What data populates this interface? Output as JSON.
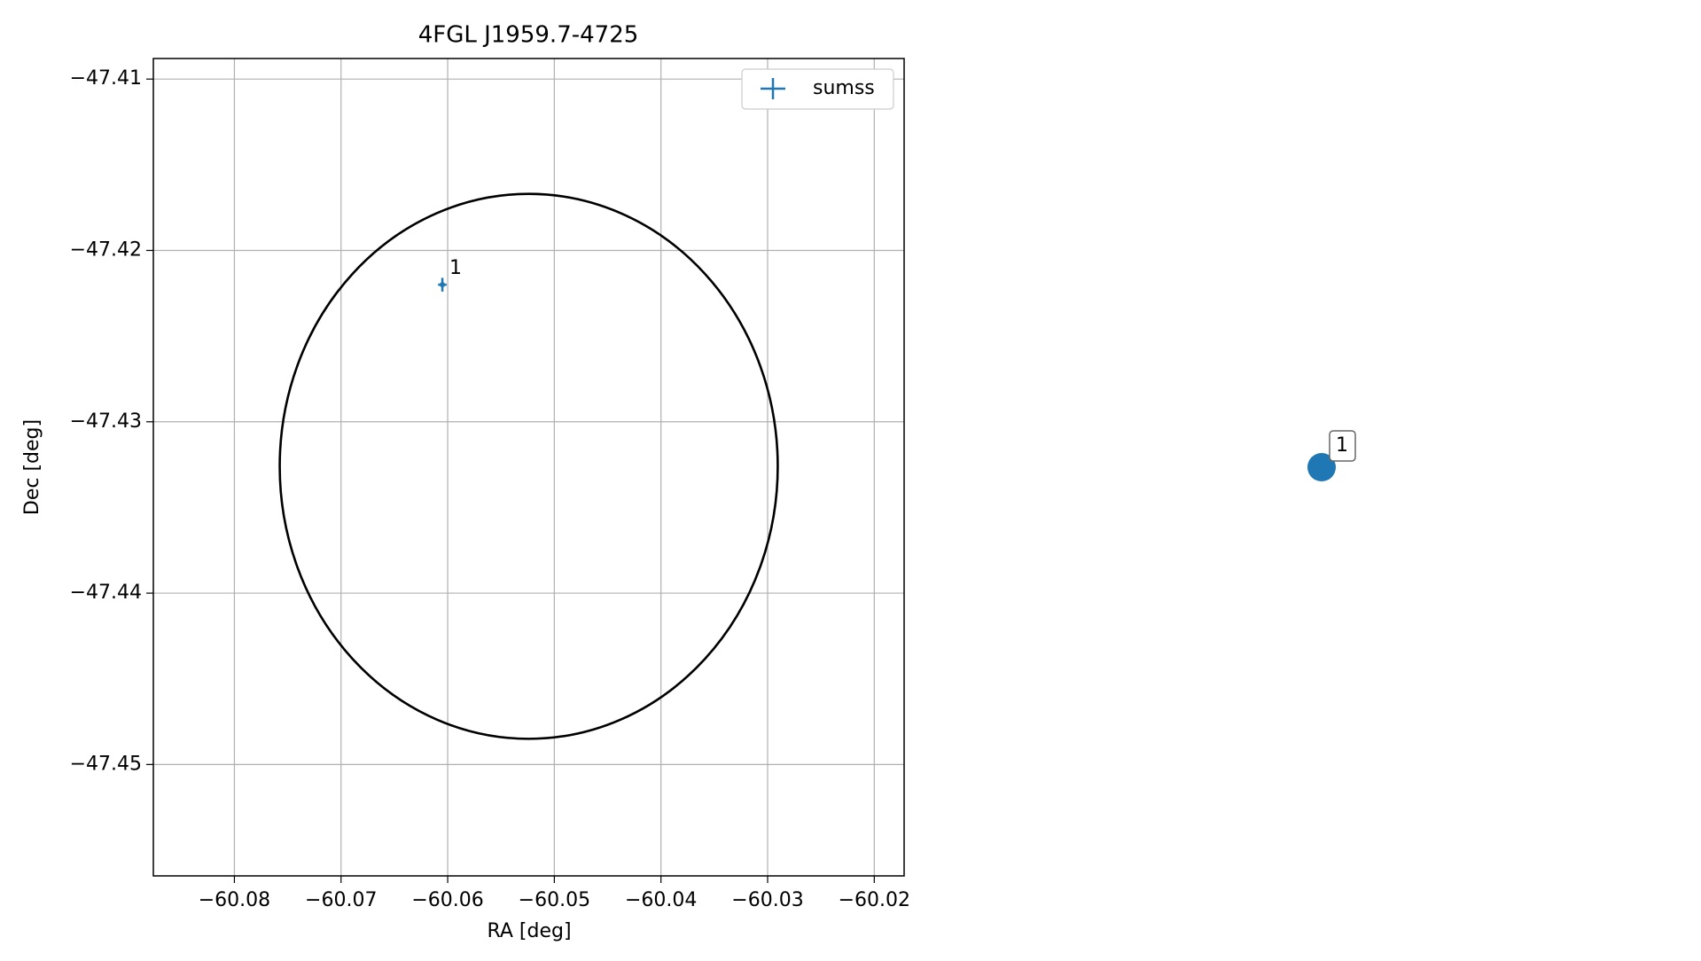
{
  "chart_data": {
    "type": "scatter",
    "title": "4FGL J1959.7-4725",
    "x_label": "RA [deg]",
    "y_label": "Dec [deg]",
    "xlim": [
      -60.0876,
      -60.0172
    ],
    "ylim": [
      -47.4565,
      -47.4088
    ],
    "xticks": [
      {
        "value": -60.08,
        "label": "−60.08"
      },
      {
        "value": -60.07,
        "label": "−60.07"
      },
      {
        "value": -60.06,
        "label": "−60.06"
      },
      {
        "value": -60.05,
        "label": "−60.05"
      },
      {
        "value": -60.04,
        "label": "−60.04"
      },
      {
        "value": -60.03,
        "label": "−60.03"
      },
      {
        "value": -60.02,
        "label": "−60.02"
      }
    ],
    "yticks": [
      {
        "value": -47.41,
        "label": "−47.41"
      },
      {
        "value": -47.42,
        "label": "−47.42"
      },
      {
        "value": -47.43,
        "label": "−47.43"
      },
      {
        "value": -47.44,
        "label": "−47.44"
      },
      {
        "value": -47.45,
        "label": "−47.45"
      }
    ],
    "grid": true,
    "legend": "upper right",
    "series": [
      {
        "name": "sumss",
        "color": "#1f77b4",
        "x": [
          -60.0605
        ],
        "values": [
          -47.422
        ],
        "xerr": [
          0.0004
        ],
        "yerr": [
          0.0004
        ],
        "point_labels": [
          "1"
        ]
      }
    ],
    "ellipse": {
      "center": [
        -60.0524,
        -47.4326
      ],
      "width": 0.0467,
      "height": 0.0318,
      "color": "#000000"
    }
  },
  "map": {
    "marker_label": "1",
    "color": "#1f77b4"
  }
}
